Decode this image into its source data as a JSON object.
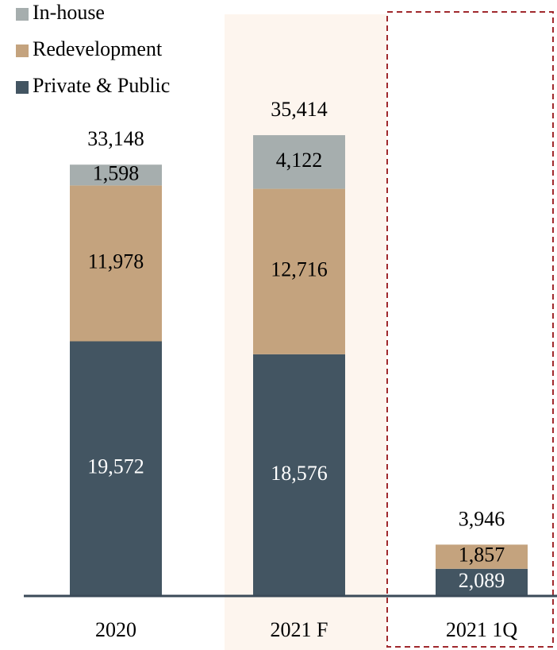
{
  "chart_data": {
    "type": "bar",
    "stacked": true,
    "categories": [
      "2020",
      "2021 F",
      "2021 1Q"
    ],
    "series": [
      {
        "name": "Private & Public",
        "color": "#435562",
        "values": [
          19572,
          18576,
          2089
        ],
        "value_labels": [
          "19,572",
          "18,576",
          "2,089"
        ],
        "label_color": "#ffffff"
      },
      {
        "name": "Redevelopment",
        "color": "#c4a37e",
        "values": [
          11978,
          12716,
          1857
        ],
        "value_labels": [
          "11,978",
          "12,716",
          "1,857"
        ],
        "label_color": "#000000"
      },
      {
        "name": "In-house",
        "color": "#a6aeae",
        "values": [
          1598,
          4122,
          null
        ],
        "value_labels": [
          "1,598",
          "4,122",
          null
        ],
        "label_color": "#000000"
      }
    ],
    "totals": [
      33148,
      35414,
      3946
    ],
    "total_labels": [
      "33,148",
      "35,414",
      "3,946"
    ],
    "ylim": [
      0,
      40000
    ]
  }
}
